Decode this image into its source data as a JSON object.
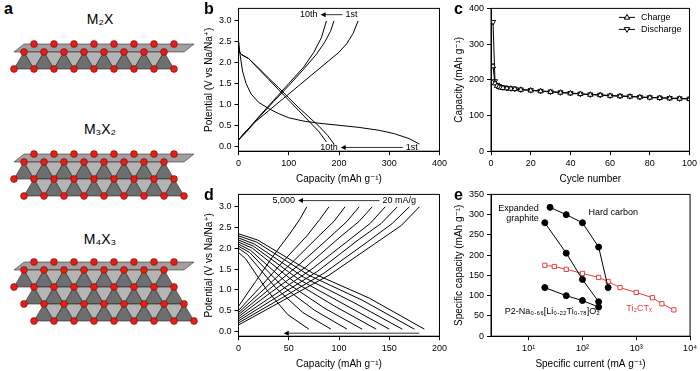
{
  "panel_a": {
    "title": "a",
    "structures": [
      "M₂X",
      "M₃X₂",
      "M₄X₃"
    ]
  },
  "chart_data": [
    {
      "type": "line",
      "title": "b",
      "x_label": "Capacity (mAh g⁻¹)",
      "y_label": "Potential (V vs Na/Na⁺)",
      "xlim": [
        0,
        400
      ],
      "xticks": [
        0,
        100,
        200,
        300,
        400
      ],
      "ylim": [
        -0.12,
        3.3
      ],
      "yticks": [
        {
          "value": 0,
          "label": "0.0"
        },
        0.5,
        {
          "value": 1,
          "label": "1.0"
        },
        1.5,
        {
          "value": 2,
          "label": "2.0"
        },
        2.5,
        {
          "value": 3,
          "label": "3.0"
        }
      ],
      "grid": false,
      "series": [
        {
          "color": "#000000",
          "x": [
            0,
            3,
            8,
            15,
            25,
            40,
            60,
            80,
            100,
            130,
            160,
            200,
            240,
            280,
            310,
            340,
            360
          ],
          "values": [
            2.55,
            2.2,
            1.8,
            1.5,
            1.25,
            1.05,
            0.9,
            0.78,
            0.68,
            0.6,
            0.55,
            0.5,
            0.45,
            0.38,
            0.3,
            0.18,
            0.05
          ]
        },
        {
          "color": "#000000",
          "x": [
            0,
            10,
            30,
            60,
            90,
            120,
            150,
            180,
            200,
            215,
            228,
            238
          ],
          "values": [
            0.15,
            0.3,
            0.55,
            0.85,
            1.15,
            1.45,
            1.75,
            2.05,
            2.25,
            2.45,
            2.7,
            3.0
          ]
        },
        {
          "color": "#000000",
          "x": [
            0,
            5,
            20,
            40,
            60,
            80,
            100,
            120,
            140,
            160,
            178,
            190
          ],
          "values": [
            2.3,
            2.2,
            2.1,
            1.87,
            1.63,
            1.4,
            1.16,
            0.92,
            0.7,
            0.48,
            0.25,
            0.05
          ]
        },
        {
          "color": "#000000",
          "x": [
            0,
            15,
            40,
            70,
            100,
            130,
            155,
            172,
            183,
            190
          ],
          "values": [
            0.15,
            0.33,
            0.68,
            1.07,
            1.45,
            1.85,
            2.2,
            2.5,
            2.75,
            3.0
          ]
        },
        {
          "color": "#000000",
          "x": [
            0,
            5,
            20,
            40,
            60,
            80,
            100,
            120,
            140,
            160,
            175
          ],
          "values": [
            2.3,
            2.2,
            2.1,
            1.85,
            1.6,
            1.35,
            1.1,
            0.85,
            0.6,
            0.35,
            0.1
          ]
        },
        {
          "color": "#000000",
          "x": [
            0,
            15,
            40,
            70,
            100,
            130,
            150,
            165,
            175
          ],
          "values": [
            0.15,
            0.35,
            0.7,
            1.1,
            1.5,
            1.9,
            2.25,
            2.6,
            3.0
          ]
        }
      ],
      "annotations": [
        {
          "text": "10th",
          "x": 140,
          "y": 3.15
        },
        {
          "text": "1st",
          "x": 225,
          "y": 3.15
        },
        {
          "text": "10th",
          "x": 180,
          "y": -0.03
        },
        {
          "text": "1st",
          "x": 345,
          "y": -0.03
        }
      ]
    },
    {
      "type": "line",
      "title": "c",
      "x_label": "Cycle number",
      "y_label": "Capacity (mAh g⁻¹)",
      "xlim": [
        0,
        100
      ],
      "xticks": [
        0,
        20,
        40,
        60,
        80,
        100
      ],
      "ylim": [
        0,
        400
      ],
      "yticks": [
        0,
        100,
        200,
        300,
        400
      ],
      "grid": false,
      "legend": "upper right",
      "series": [
        {
          "name": "Charge",
          "color": "#000000",
          "marker": "open-triangle-up",
          "x": [
            1,
            2,
            3,
            4,
            5,
            6,
            8,
            10,
            12,
            15,
            20,
            25,
            30,
            35,
            40,
            45,
            50,
            55,
            60,
            65,
            70,
            75,
            80,
            85,
            90,
            95,
            100
          ],
          "values": [
            238,
            190,
            183,
            180,
            178,
            177,
            176,
            175,
            174,
            172,
            170,
            168,
            166,
            164,
            162,
            160,
            158,
            157,
            155,
            154,
            153,
            151,
            150,
            149,
            148,
            147,
            146
          ]
        },
        {
          "name": "Discharge",
          "color": "#000000",
          "marker": "open-triangle-down",
          "x": [
            1,
            2,
            3,
            4,
            5,
            6,
            8,
            10,
            12,
            15,
            20,
            25,
            30,
            35,
            40,
            45,
            50,
            55,
            60,
            65,
            70,
            75,
            80,
            85,
            90,
            95,
            100
          ],
          "values": [
            362,
            196,
            186,
            182,
            180,
            179,
            177,
            176,
            175,
            173,
            171,
            169,
            167,
            165,
            163,
            161,
            159,
            158,
            156,
            155,
            154,
            152,
            151,
            150,
            149,
            148,
            147
          ]
        }
      ]
    },
    {
      "type": "line",
      "title": "d",
      "x_label": "Capacity (mAh g⁻¹)",
      "y_label": "Potential (V vs Na/Na⁺)",
      "xlim": [
        0,
        200
      ],
      "xticks": [
        0,
        50,
        100,
        150,
        200
      ],
      "ylim": [
        -0.12,
        3.3
      ],
      "yticks": [
        {
          "value": 0,
          "label": "0.0"
        },
        0.5,
        {
          "value": 1,
          "label": "1.0"
        },
        1.5,
        {
          "value": 2,
          "label": "2.0"
        },
        2.5,
        {
          "value": 3,
          "label": "3.0"
        }
      ],
      "grid": false,
      "series": [
        {
          "color": "#000000",
          "x": [
            0,
            45,
            90,
            135,
            162,
            180
          ],
          "values": [
            0.15,
            0.75,
            1.35,
            2.1,
            2.55,
            3.0
          ]
        },
        {
          "color": "#000000",
          "x": [
            0,
            43,
            85,
            128,
            153,
            170
          ],
          "values": [
            0.2,
            0.8,
            1.4,
            2.15,
            2.6,
            3.0
          ]
        },
        {
          "color": "#000000",
          "x": [
            0,
            40,
            79,
            119,
            142,
            158
          ],
          "values": [
            0.25,
            0.85,
            1.45,
            2.2,
            2.6,
            3.0
          ]
        },
        {
          "color": "#000000",
          "x": [
            0,
            37,
            73,
            110,
            131,
            146
          ],
          "values": [
            0.3,
            0.9,
            1.5,
            2.2,
            2.6,
            3.0
          ]
        },
        {
          "color": "#000000",
          "x": [
            0,
            33,
            67,
            100,
            120,
            133
          ],
          "values": [
            0.35,
            0.95,
            1.55,
            2.25,
            2.65,
            3.0
          ]
        },
        {
          "color": "#000000",
          "x": [
            0,
            30,
            60,
            90,
            108,
            120
          ],
          "values": [
            0.4,
            1.0,
            1.6,
            2.25,
            2.65,
            3.0
          ]
        },
        {
          "color": "#000000",
          "x": [
            0,
            27,
            53,
            80,
            95,
            106
          ],
          "values": [
            0.45,
            1.05,
            1.65,
            2.3,
            2.65,
            3.0
          ]
        },
        {
          "color": "#000000",
          "x": [
            0,
            23,
            45,
            68,
            81,
            90
          ],
          "values": [
            0.5,
            1.1,
            1.7,
            2.3,
            2.7,
            3.0
          ]
        },
        {
          "color": "#000000",
          "x": [
            0,
            17,
            34,
            51,
            61,
            68
          ],
          "values": [
            0.6,
            1.2,
            1.8,
            2.35,
            2.7,
            3.0
          ]
        },
        {
          "color": "#000000",
          "x": [
            0,
            19,
            74,
            130,
            185
          ],
          "values": [
            2.35,
            2.2,
            1.4,
            0.8,
            0.05
          ]
        },
        {
          "color": "#000000",
          "x": [
            0,
            18,
            70,
            123,
            175
          ],
          "values": [
            2.3,
            2.15,
            1.35,
            0.75,
            0.05
          ]
        },
        {
          "color": "#000000",
          "x": [
            0,
            16,
            65,
            114,
            163
          ],
          "values": [
            2.25,
            2.1,
            1.3,
            0.7,
            0.05
          ]
        },
        {
          "color": "#000000",
          "x": [
            0,
            15,
            60,
            105,
            150
          ],
          "values": [
            2.2,
            2.05,
            1.25,
            0.65,
            0.05
          ]
        },
        {
          "color": "#000000",
          "x": [
            0,
            14,
            55,
            96,
            137
          ],
          "values": [
            2.15,
            2.0,
            1.2,
            0.6,
            0.05
          ]
        },
        {
          "color": "#000000",
          "x": [
            0,
            12,
            49,
            86,
            123
          ],
          "values": [
            2.1,
            1.95,
            1.15,
            0.55,
            0.05
          ]
        },
        {
          "color": "#000000",
          "x": [
            0,
            11,
            43,
            76,
            108
          ],
          "values": [
            2.05,
            1.9,
            1.1,
            0.5,
            0.05
          ]
        },
        {
          "color": "#000000",
          "x": [
            0,
            9,
            37,
            64,
            92
          ],
          "values": [
            2.0,
            1.85,
            1.05,
            0.45,
            0.05
          ]
        },
        {
          "color": "#000000",
          "x": [
            0,
            7,
            28,
            49,
            70
          ],
          "values": [
            1.9,
            1.75,
            1.0,
            0.4,
            0.05
          ]
        }
      ],
      "annotations": [
        {
          "text": "5,000",
          "x": 45,
          "y": 3.15
        },
        {
          "text": "20 mA/g",
          "x": 160,
          "y": 3.15
        }
      ]
    },
    {
      "type": "line",
      "title": "e",
      "x_label": "Specific current (mA g⁻¹)",
      "y_label": "Specific capacity (mAh g⁻¹)",
      "log": "x",
      "xlim": [
        2,
        10000
      ],
      "xticks": [
        {
          "value": 10,
          "label": "10¹"
        },
        {
          "value": 100,
          "label": "10²"
        },
        {
          "value": 1000,
          "label": "10³"
        },
        {
          "value": 10000,
          "label": "10⁴"
        }
      ],
      "ylim": [
        0,
        350
      ],
      "yticks": [
        0,
        50,
        100,
        150,
        200,
        250,
        300,
        350
      ],
      "grid": false,
      "series": [
        {
          "name": "Hard carbon",
          "color": "#000000",
          "marker": "circle",
          "x": [
            25,
            50,
            100,
            200,
            300
          ],
          "values": [
            318,
            300,
            280,
            220,
            120
          ]
        },
        {
          "name": "Expanded graphite",
          "color": "#000000",
          "marker": "circle",
          "x": [
            20,
            50,
            100,
            200
          ],
          "values": [
            280,
            205,
            140,
            85
          ]
        },
        {
          "name": "P2-Na₀.₆₆[Li₀.₂₂Ti₀.₇₈]O₂",
          "color": "#000000",
          "marker": "circle",
          "x": [
            20,
            50,
            100,
            200
          ],
          "values": [
            120,
            100,
            88,
            72
          ]
        },
        {
          "name": "Ti₂CTₓ",
          "color": "#e8403a",
          "marker": "open-square",
          "x": [
            20,
            30,
            50,
            100,
            200,
            300,
            500,
            1000,
            2000,
            3000,
            5000
          ],
          "values": [
            175,
            172,
            165,
            155,
            145,
            135,
            120,
            108,
            95,
            80,
            65
          ]
        }
      ]
    }
  ]
}
